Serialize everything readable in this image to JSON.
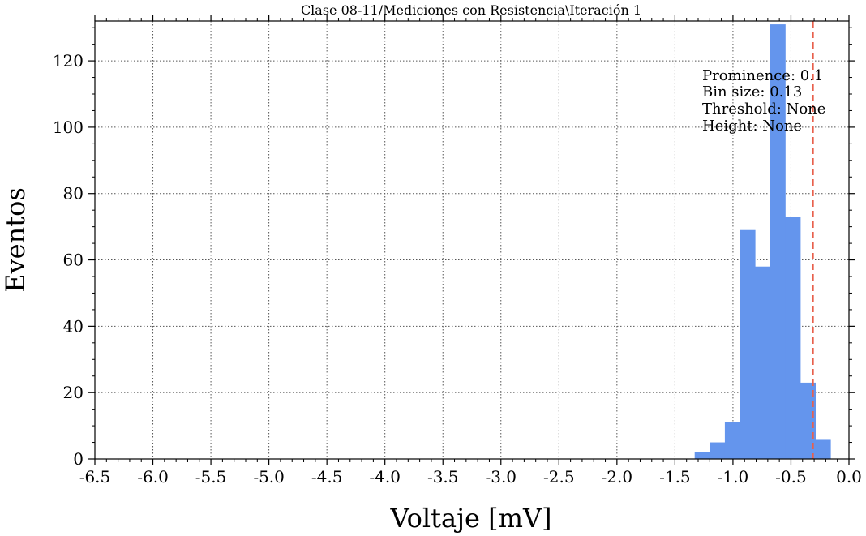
{
  "chart_data": {
    "type": "bar",
    "title": "Clase 08-11/Mediciones con Resistencia\\Iteración 1",
    "xlabel": "Voltaje [mV]",
    "ylabel": "Eventos",
    "xlim": [
      -6.5,
      0.0
    ],
    "ylim": [
      0,
      132
    ],
    "grid": true,
    "bar_color": "#6495ED",
    "threshold_color": "#E8604C",
    "bin_width": 0.13,
    "bins": [
      {
        "x0": -1.33,
        "x1": -1.2,
        "count": 2
      },
      {
        "x0": -1.2,
        "x1": -1.07,
        "count": 5
      },
      {
        "x0": -1.07,
        "x1": -0.94,
        "count": 11
      },
      {
        "x0": -0.94,
        "x1": -0.81,
        "count": 69
      },
      {
        "x0": -0.81,
        "x1": -0.68,
        "count": 58
      },
      {
        "x0": -0.68,
        "x1": -0.55,
        "count": 131
      },
      {
        "x0": -0.55,
        "x1": -0.42,
        "count": 73
      },
      {
        "x0": -0.42,
        "x1": -0.29,
        "count": 23
      },
      {
        "x0": -0.29,
        "x1": -0.16,
        "count": 6
      }
    ],
    "threshold_line_x": -0.31,
    "x_ticks": [
      "-6.5",
      "-6.0",
      "-5.5",
      "-5.0",
      "-4.5",
      "-4.0",
      "-3.5",
      "-3.0",
      "-2.5",
      "-2.0",
      "-1.5",
      "-1.0",
      "-0.5",
      "0.0"
    ],
    "x_tick_values": [
      -6.5,
      -6.0,
      -5.5,
      -5.0,
      -4.5,
      -4.0,
      -3.5,
      -3.0,
      -2.5,
      -2.0,
      -1.5,
      -1.0,
      -0.5,
      0.0
    ],
    "y_ticks": [
      "0",
      "20",
      "40",
      "60",
      "80",
      "100",
      "120"
    ],
    "y_tick_values": [
      0,
      20,
      40,
      60,
      80,
      100,
      120
    ],
    "annotation_lines": [
      "Prominence: 0.1",
      "Bin size: 0.13",
      "Threshold: None",
      "Height: None"
    ]
  }
}
